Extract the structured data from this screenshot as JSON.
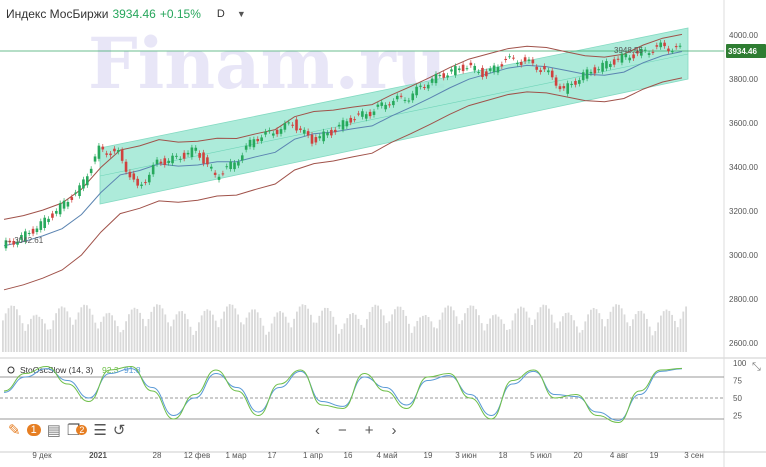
{
  "header": {
    "instrument": "Индекс МосБиржи",
    "price": "3934.46",
    "change": "+0.15%",
    "timeframe": "D"
  },
  "watermark": "Finam.ru",
  "price_axis": {
    "ticks": [
      "4000.00",
      "3800.00",
      "3600.00",
      "3400.00",
      "3200.00",
      "3000.00",
      "2800.00",
      "2600.00"
    ],
    "last_price_label": "3934.46",
    "last_price_color": "#2e7d32"
  },
  "annotations": {
    "high_label": "3948.55",
    "low_label": "← 3042.61"
  },
  "oscillator": {
    "name": "StoOscSlow (14, 3)",
    "k_value": "92.3",
    "d_value": "91.8",
    "ticks": [
      "100",
      "75",
      "50",
      "25"
    ]
  },
  "x_axis_labels": [
    "9 дек",
    "2021",
    "28",
    "12 фев",
    "1 мар",
    "17",
    "1 апр",
    "16",
    "4 май",
    "19",
    "3 июн",
    "18",
    "5 июл",
    "20",
    "4 авг",
    "19",
    "3 сен"
  ],
  "toolbar": {
    "badge_1": "1",
    "badge_2": "2"
  },
  "colors": {
    "channel_fill": "#9fe8d4",
    "bollinger": "#a0524a",
    "ma": "#5b84b1",
    "up": "#27a95c",
    "down": "#d0413e",
    "k_line": "#6fbf4a",
    "d_line": "#5a9ad6"
  },
  "chart_data": [
    {
      "type": "candlestick",
      "title": "Индекс МосБиржи",
      "ylim": [
        2560,
        4060
      ],
      "x_labels": [
        "9 дек",
        "2021",
        "28",
        "12 фев",
        "1 мар",
        "17",
        "1 апр",
        "16",
        "4 май",
        "19",
        "3 июн",
        "18",
        "5 июл",
        "20",
        "4 авг",
        "19",
        "3 сен"
      ],
      "close_approx": [
        3042.61,
        3080,
        3140,
        3220,
        3300,
        3480,
        3460,
        3300,
        3420,
        3440,
        3480,
        3360,
        3420,
        3530,
        3560,
        3600,
        3520,
        3560,
        3620,
        3650,
        3700,
        3720,
        3790,
        3830,
        3860,
        3820,
        3890,
        3880,
        3840,
        3750,
        3820,
        3860,
        3900,
        3920,
        3948.55,
        3934.46
      ],
      "annotations": [
        "3948.55",
        "3042.61"
      ],
      "last": 3934.46
    },
    {
      "type": "line",
      "title": "StoOscSlow (14, 3)",
      "ylim": [
        0,
        100
      ],
      "ticks": [
        25,
        50,
        75,
        100
      ],
      "series": [
        {
          "name": "92.3",
          "values": [
            60,
            85,
            95,
            70,
            45,
            90,
            95,
            60,
            20,
            55,
            90,
            60,
            25,
            70,
            90,
            40,
            35,
            85,
            60,
            35,
            80,
            85,
            50,
            20,
            75,
            90,
            50,
            55,
            25,
            15,
            60,
            90,
            92.3
          ]
        },
        {
          "name": "91.8",
          "values": [
            58,
            80,
            92,
            75,
            50,
            85,
            92,
            65,
            25,
            50,
            85,
            65,
            30,
            65,
            88,
            45,
            38,
            80,
            65,
            40,
            75,
            82,
            55,
            25,
            70,
            88,
            55,
            52,
            30,
            18,
            55,
            88,
            91.8
          ]
        }
      ],
      "reference_lines": [
        80,
        50,
        20
      ]
    }
  ]
}
